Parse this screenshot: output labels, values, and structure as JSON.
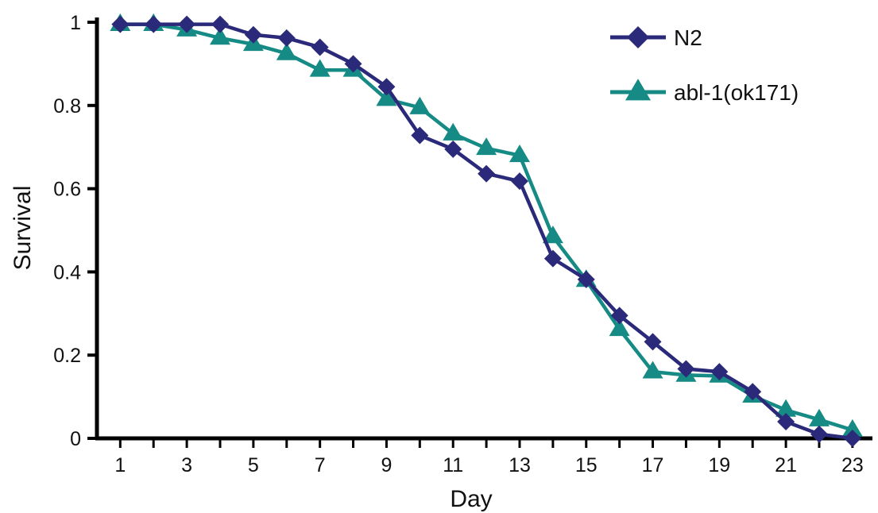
{
  "chart_data": {
    "type": "line",
    "title": "",
    "xlabel": "Day",
    "ylabel": "Survival",
    "xlim": [
      0.3,
      23.6
    ],
    "ylim": [
      0,
      1
    ],
    "x_ticks": [
      1,
      3,
      5,
      7,
      9,
      11,
      13,
      15,
      17,
      19,
      21,
      23
    ],
    "x_tick_labels": [
      "1",
      "3",
      "5",
      "7",
      "9",
      "11",
      "13",
      "15",
      "17",
      "19",
      "21",
      "23"
    ],
    "y_ticks": [
      0,
      0.2,
      0.4,
      0.6,
      0.8,
      1
    ],
    "y_tick_labels": [
      "0",
      "0.2",
      "0.4",
      "0.6",
      "0.8",
      "1"
    ],
    "grid": false,
    "legend_position": "top-right",
    "x": [
      1,
      2,
      3,
      4,
      5,
      6,
      7,
      8,
      9,
      10,
      11,
      12,
      13,
      14,
      15,
      16,
      17,
      18,
      19,
      20,
      21,
      22,
      23
    ],
    "series": [
      {
        "name": "N2",
        "marker": "diamond",
        "color": "#2b2a7a",
        "values": [
          0.995,
          0.995,
          0.995,
          0.995,
          0.97,
          0.962,
          0.94,
          0.9,
          0.845,
          0.728,
          0.695,
          0.636,
          0.618,
          0.432,
          0.382,
          0.295,
          0.232,
          0.167,
          0.16,
          0.112,
          0.04,
          0.01,
          0.0
        ]
      },
      {
        "name": "abl-1(ok171)",
        "marker": "triangle",
        "color": "#168a84",
        "values": [
          0.995,
          0.995,
          0.982,
          0.962,
          0.947,
          0.925,
          0.885,
          0.885,
          0.815,
          0.795,
          0.732,
          0.697,
          0.68,
          0.485,
          0.38,
          0.262,
          0.16,
          0.152,
          0.15,
          0.102,
          0.068,
          0.045,
          0.02
        ]
      }
    ]
  }
}
